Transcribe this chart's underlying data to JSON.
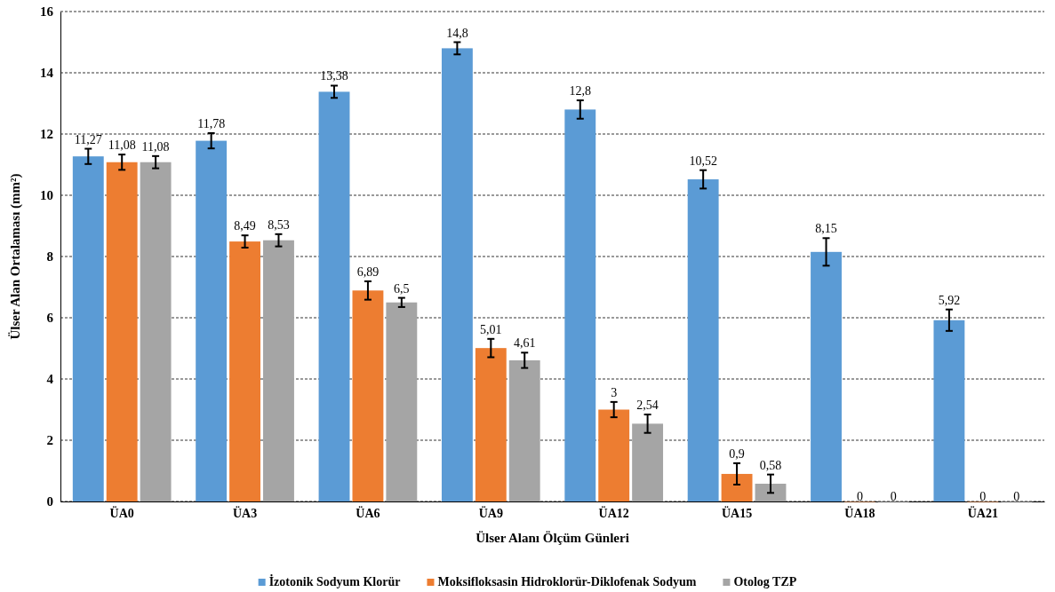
{
  "chart_data": {
    "type": "bar",
    "xlabel": "Ülser Alanı Ölçüm Günleri",
    "ylabel": "Ülser Alan Ortalaması (mm²)",
    "categories": [
      "ÜA0",
      "ÜA3",
      "ÜA6",
      "ÜA9",
      "ÜA12",
      "ÜA15",
      "ÜA18",
      "ÜA21"
    ],
    "series": [
      {
        "name": "İzotonik Sodyum Klorür",
        "color": "#5b9bd5",
        "values": [
          11.27,
          11.78,
          13.38,
          14.8,
          12.8,
          10.52,
          8.15,
          5.92
        ],
        "errors": [
          0.25,
          0.25,
          0.2,
          0.2,
          0.3,
          0.3,
          0.45,
          0.35
        ],
        "value_labels": [
          "11,27",
          "11,78",
          "13,38",
          "14,8",
          "12,8",
          "10,52",
          "8,15",
          "5,92"
        ]
      },
      {
        "name": "Moksifloksasin Hidroklorür-Diklofenak Sodyum",
        "color": "#ed7d31",
        "values": [
          11.08,
          8.49,
          6.89,
          5.01,
          3,
          0.9,
          0,
          0
        ],
        "errors": [
          0.25,
          0.2,
          0.3,
          0.3,
          0.25,
          0.35,
          null,
          null
        ],
        "value_labels": [
          "11,08",
          "8,49",
          "6,89",
          "5,01",
          "3",
          "0,9",
          "0",
          "0"
        ]
      },
      {
        "name": "Otolog TZP",
        "color": "#a5a5a5",
        "values": [
          11.08,
          8.53,
          6.5,
          4.61,
          2.54,
          0.58,
          0,
          0
        ],
        "errors": [
          0.2,
          0.2,
          0.15,
          0.25,
          0.3,
          0.3,
          null,
          null
        ],
        "value_labels": [
          "11,08",
          "8,53",
          "6,5",
          "4,61",
          "2,54",
          "0,58",
          "0",
          "0"
        ]
      }
    ],
    "ylim": [
      0,
      16
    ],
    "yticks": [
      0,
      2,
      4,
      6,
      8,
      10,
      12,
      14,
      16
    ],
    "grid": "y",
    "legend": "bottom"
  }
}
